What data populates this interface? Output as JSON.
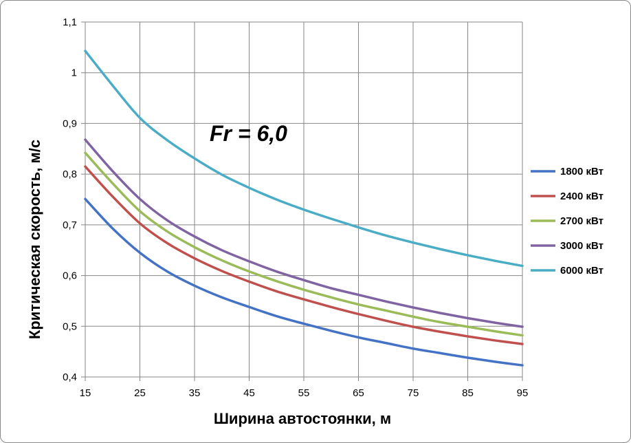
{
  "chart_data": {
    "type": "line",
    "title": "",
    "annotation": "Fr = 6,0",
    "xlabel": "Ширина автостоянки, м",
    "ylabel": "Критическая скорость, м/с",
    "xlim": [
      15,
      95
    ],
    "ylim": [
      0.4,
      1.1
    ],
    "x_ticks": [
      15,
      25,
      35,
      45,
      55,
      65,
      75,
      85,
      95
    ],
    "x_tick_labels": [
      "15",
      "25",
      "35",
      "45",
      "55",
      "65",
      "75",
      "85",
      "95"
    ],
    "y_ticks": [
      0.4,
      0.5,
      0.6,
      0.7,
      0.8,
      0.9,
      1.0,
      1.1
    ],
    "y_tick_labels": [
      "0,4",
      "0,5",
      "0,6",
      "0,7",
      "0,8",
      "0,9",
      "1",
      "1,1"
    ],
    "grid": true,
    "legend_position": "right",
    "x": [
      15,
      20,
      25,
      30,
      35,
      40,
      45,
      50,
      55,
      60,
      65,
      70,
      75,
      80,
      85,
      90,
      95
    ],
    "series": [
      {
        "name": "1800 кВт",
        "color": "#4472C4",
        "values": [
          0.751,
          0.693,
          0.645,
          0.608,
          0.58,
          0.557,
          0.538,
          0.52,
          0.505,
          0.491,
          0.478,
          0.467,
          0.456,
          0.447,
          0.438,
          0.43,
          0.423
        ]
      },
      {
        "name": "2400 кВт",
        "color": "#C0504D",
        "values": [
          0.815,
          0.756,
          0.703,
          0.664,
          0.634,
          0.609,
          0.588,
          0.569,
          0.553,
          0.538,
          0.524,
          0.511,
          0.499,
          0.489,
          0.48,
          0.472,
          0.465
        ]
      },
      {
        "name": "2700 кВт",
        "color": "#9BBB59",
        "values": [
          0.842,
          0.782,
          0.727,
          0.687,
          0.656,
          0.63,
          0.608,
          0.589,
          0.572,
          0.557,
          0.543,
          0.531,
          0.519,
          0.508,
          0.499,
          0.49,
          0.482
        ]
      },
      {
        "name": "3000 кВт",
        "color": "#8064A2",
        "values": [
          0.868,
          0.806,
          0.751,
          0.709,
          0.677,
          0.65,
          0.628,
          0.608,
          0.591,
          0.575,
          0.562,
          0.549,
          0.537,
          0.526,
          0.516,
          0.507,
          0.499
        ]
      },
      {
        "name": "6000 кВт",
        "color": "#4BACC6",
        "values": [
          1.043,
          0.975,
          0.911,
          0.867,
          0.831,
          0.799,
          0.773,
          0.75,
          0.73,
          0.712,
          0.695,
          0.679,
          0.665,
          0.652,
          0.64,
          0.629,
          0.619
        ]
      }
    ]
  }
}
